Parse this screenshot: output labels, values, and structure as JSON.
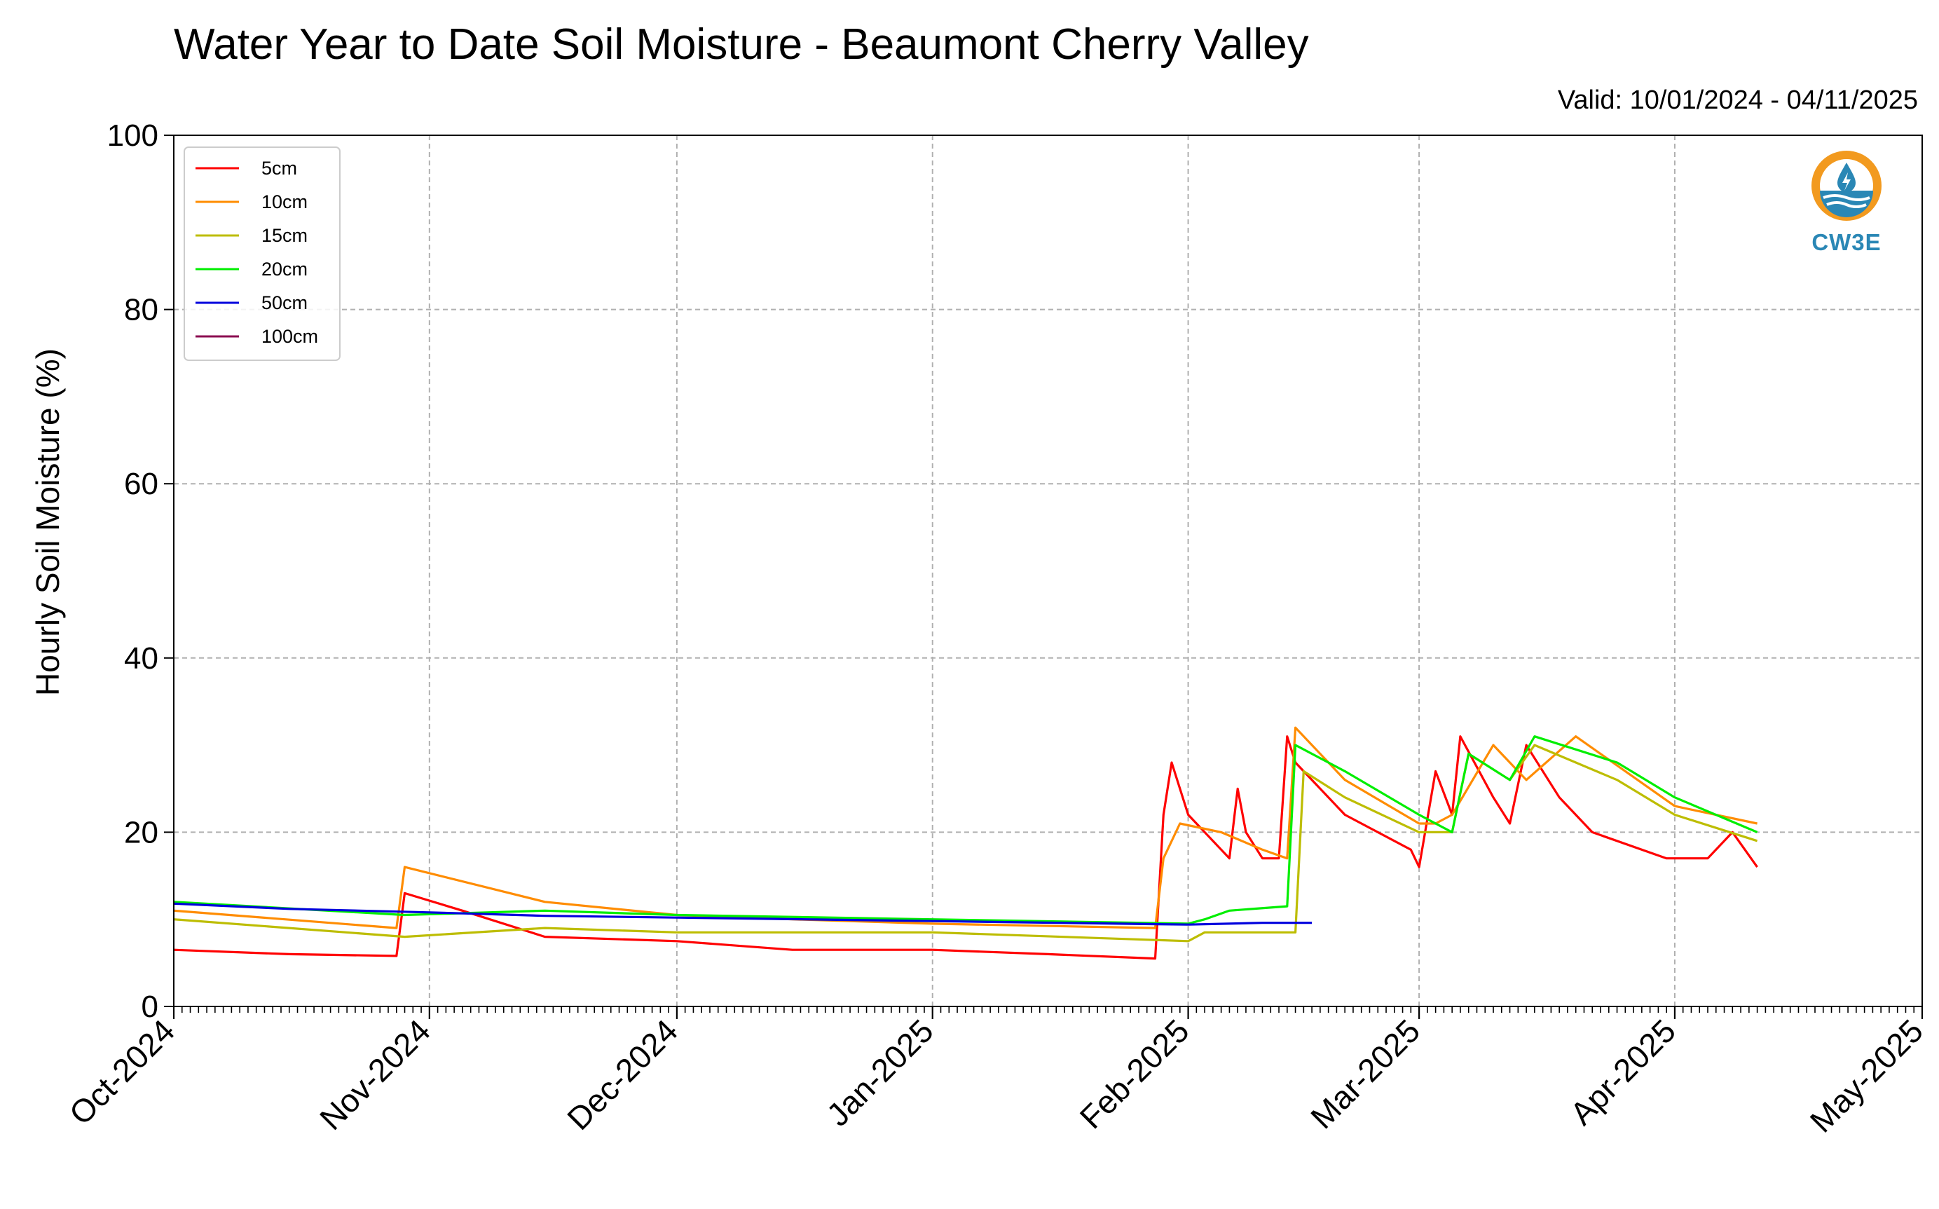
{
  "chart_data": {
    "type": "line",
    "title": "Water Year to Date Soil Moisture - Beaumont Cherry Valley",
    "subtitle": "Valid: 10/01/2024 - 04/11/2025",
    "ylabel": "Hourly Soil Moisture (%)",
    "xlabel": "",
    "ylim": [
      0,
      100
    ],
    "yticks": [
      0,
      20,
      40,
      60,
      80,
      100
    ],
    "xlim": [
      "2024-10-01",
      "2025-05-01"
    ],
    "xticks": [
      {
        "date": "2024-10-01",
        "label": "Oct-2024"
      },
      {
        "date": "2024-11-01",
        "label": "Nov-2024"
      },
      {
        "date": "2024-12-01",
        "label": "Dec-2024"
      },
      {
        "date": "2025-01-01",
        "label": "Jan-2025"
      },
      {
        "date": "2025-02-01",
        "label": "Feb-2025"
      },
      {
        "date": "2025-03-01",
        "label": "Mar-2025"
      },
      {
        "date": "2025-04-01",
        "label": "Apr-2025"
      },
      {
        "date": "2025-05-01",
        "label": "May-2025"
      }
    ],
    "grid": true,
    "legend_position": "top-left",
    "series": [
      {
        "name": "5cm",
        "color": "#ff0000",
        "x": [
          "2024-10-01",
          "2024-10-15",
          "2024-10-28",
          "2024-10-29",
          "2024-11-05",
          "2024-11-15",
          "2024-12-01",
          "2024-12-15",
          "2025-01-01",
          "2025-01-15",
          "2025-01-28",
          "2025-01-29",
          "2025-01-30",
          "2025-02-01",
          "2025-02-06",
          "2025-02-07",
          "2025-02-08",
          "2025-02-10",
          "2025-02-12",
          "2025-02-13",
          "2025-02-14",
          "2025-02-20",
          "2025-02-28",
          "2025-03-01",
          "2025-03-03",
          "2025-03-05",
          "2025-03-06",
          "2025-03-10",
          "2025-03-12",
          "2025-03-14",
          "2025-03-18",
          "2025-03-22",
          "2025-03-31",
          "2025-04-05",
          "2025-04-08",
          "2025-04-11"
        ],
        "y": [
          6.5,
          6,
          5.8,
          13,
          11,
          8,
          7.5,
          6.5,
          6.5,
          6,
          5.5,
          22,
          28,
          22,
          17,
          25,
          20,
          17,
          17,
          31,
          28,
          22,
          18,
          16,
          27,
          22,
          31,
          24,
          21,
          30,
          24,
          20,
          17,
          17,
          20,
          16
        ]
      },
      {
        "name": "10cm",
        "color": "#ff8c00",
        "x": [
          "2024-10-01",
          "2024-10-28",
          "2024-10-29",
          "2024-11-15",
          "2024-12-01",
          "2024-12-15",
          "2025-01-01",
          "2025-01-28",
          "2025-01-29",
          "2025-01-31",
          "2025-02-05",
          "2025-02-10",
          "2025-02-13",
          "2025-02-14",
          "2025-02-20",
          "2025-03-01",
          "2025-03-03",
          "2025-03-05",
          "2025-03-10",
          "2025-03-14",
          "2025-03-20",
          "2025-04-01",
          "2025-04-11"
        ],
        "y": [
          11,
          9,
          16,
          12,
          10.5,
          10,
          9.5,
          9,
          17,
          21,
          20,
          18,
          17,
          32,
          26,
          21,
          21,
          22,
          30,
          26,
          31,
          23,
          21
        ]
      },
      {
        "name": "15cm",
        "color": "#bdbd00",
        "x": [
          "2024-10-01",
          "2024-10-29",
          "2024-11-15",
          "2024-12-01",
          "2025-01-01",
          "2025-02-01",
          "2025-02-03",
          "2025-02-14",
          "2025-02-15",
          "2025-02-20",
          "2025-03-01",
          "2025-03-05",
          "2025-03-07",
          "2025-03-12",
          "2025-03-15",
          "2025-03-25",
          "2025-04-01",
          "2025-04-11"
        ],
        "y": [
          10,
          8,
          9,
          8.5,
          8.5,
          7.5,
          8.5,
          8.5,
          27,
          24,
          20,
          20,
          29,
          26,
          30,
          26,
          22,
          19
        ]
      },
      {
        "name": "20cm",
        "color": "#00ee00",
        "x": [
          "2024-10-01",
          "2024-10-29",
          "2024-11-15",
          "2024-12-01",
          "2025-01-01",
          "2025-02-01",
          "2025-02-03",
          "2025-02-06",
          "2025-02-13",
          "2025-02-14",
          "2025-02-20",
          "2025-03-01",
          "2025-03-05",
          "2025-03-07",
          "2025-03-12",
          "2025-03-15",
          "2025-03-25",
          "2025-04-01",
          "2025-04-11"
        ],
        "y": [
          12,
          10.5,
          11,
          10.5,
          10,
          9.5,
          10,
          11,
          11.5,
          30,
          27,
          22,
          20,
          29,
          26,
          31,
          28,
          24,
          20
        ]
      },
      {
        "name": "50cm",
        "color": "#0000dd",
        "x": [
          "2024-10-01",
          "2024-10-15",
          "2024-11-01",
          "2024-11-15",
          "2024-12-01",
          "2025-01-01",
          "2025-02-01",
          "2025-02-10",
          "2025-02-16"
        ],
        "y": [
          11.8,
          11.2,
          10.8,
          10.4,
          10.2,
          9.8,
          9.4,
          9.6,
          9.6
        ]
      },
      {
        "name": "100cm",
        "color": "#8b0a50",
        "x": [],
        "y": []
      }
    ]
  },
  "logo": {
    "text": "CW3E"
  }
}
